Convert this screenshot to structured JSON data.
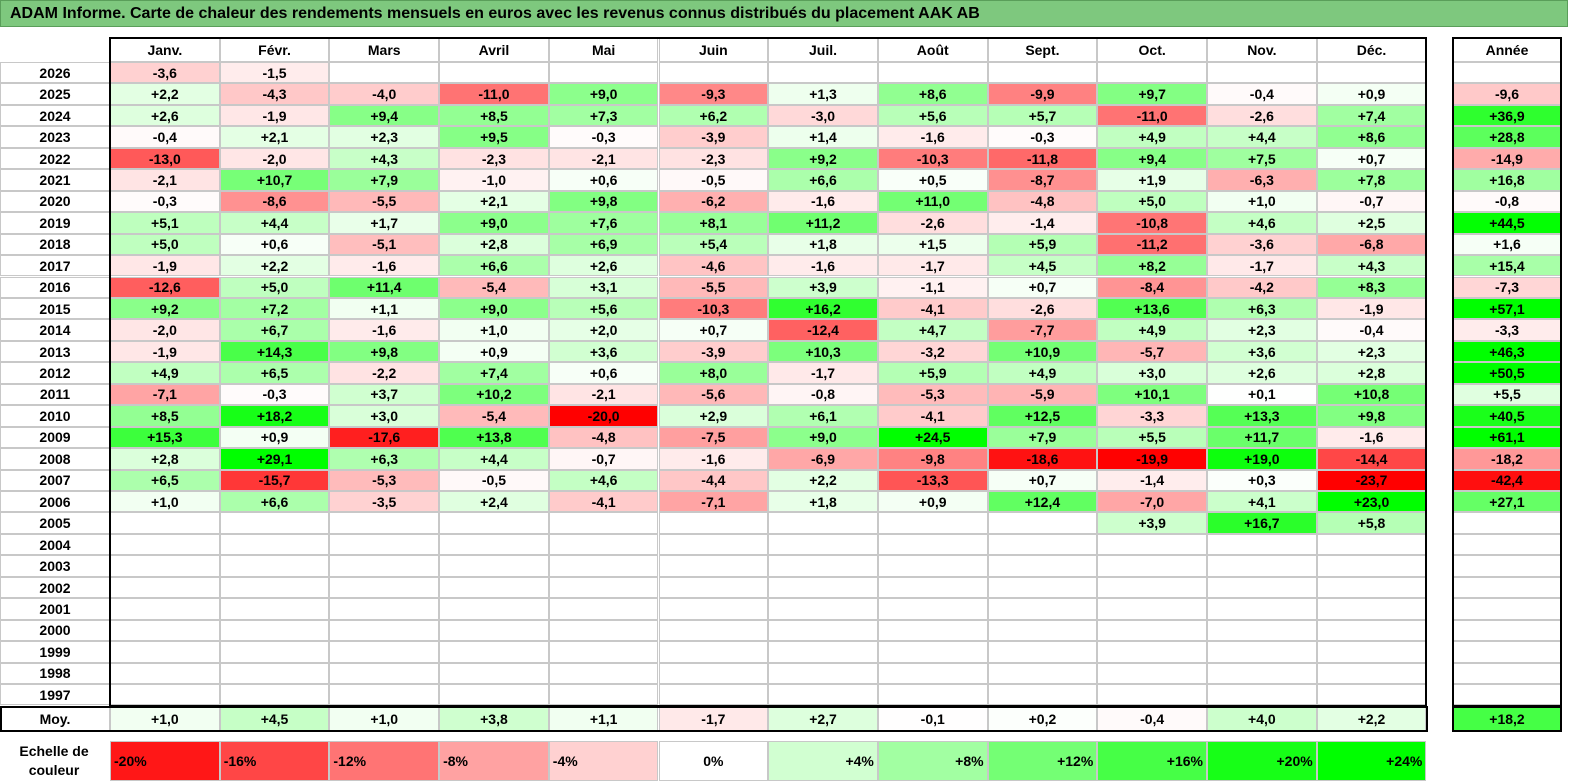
{
  "title": "ADAM Informe. Carte de chaleur des rendements mensuels en euros avec les revenus connus distribués du placement AAK AB",
  "chart_data": {
    "type": "heatmap",
    "months": [
      "Janv.",
      "Févr.",
      "Mars",
      "Avril",
      "Mai",
      "Juin",
      "Juil.",
      "Août",
      "Sept.",
      "Oct.",
      "Nov.",
      "Déc."
    ],
    "year_header": "Année",
    "rows": [
      {
        "year": "2026",
        "values": [
          "-3,6",
          "-1,5",
          "",
          "",
          "",
          "",
          "",
          "",
          "",
          "",
          "",
          ""
        ],
        "annual": ""
      },
      {
        "year": "2025",
        "values": [
          "+2,2",
          "-4,3",
          "-4,0",
          "-11,0",
          "+9,0",
          "-9,3",
          "+1,3",
          "+8,6",
          "-9,9",
          "+9,7",
          "-0,4",
          "+0,9"
        ],
        "annual": "-9,6"
      },
      {
        "year": "2024",
        "values": [
          "+2,6",
          "-1,9",
          "+9,4",
          "+8,5",
          "+7,3",
          "+6,2",
          "-3,0",
          "+5,6",
          "+5,7",
          "-11,0",
          "-2,6",
          "+7,4"
        ],
        "annual": "+36,9"
      },
      {
        "year": "2023",
        "values": [
          "-0,4",
          "+2,1",
          "+2,3",
          "+9,5",
          "-0,3",
          "-3,9",
          "+1,4",
          "-1,6",
          "-0,3",
          "+4,9",
          "+4,4",
          "+8,6"
        ],
        "annual": "+28,8"
      },
      {
        "year": "2022",
        "values": [
          "-13,0",
          "-2,0",
          "+4,3",
          "-2,3",
          "-2,1",
          "-2,3",
          "+9,2",
          "-10,3",
          "-11,8",
          "+9,4",
          "+7,5",
          "+0,7"
        ],
        "annual": "-14,9"
      },
      {
        "year": "2021",
        "values": [
          "-2,1",
          "+10,7",
          "+7,9",
          "-1,0",
          "+0,6",
          "-0,5",
          "+6,6",
          "+0,5",
          "-8,7",
          "+1,9",
          "-6,3",
          "+7,8"
        ],
        "annual": "+16,8"
      },
      {
        "year": "2020",
        "values": [
          "-0,3",
          "-8,6",
          "-5,5",
          "+2,1",
          "+9,8",
          "-6,2",
          "-1,6",
          "+11,0",
          "-4,8",
          "+5,0",
          "+1,0",
          "-0,7"
        ],
        "annual": "-0,8"
      },
      {
        "year": "2019",
        "values": [
          "+5,1",
          "+4,4",
          "+1,7",
          "+9,0",
          "+7,6",
          "+8,1",
          "+11,2",
          "-2,6",
          "-1,4",
          "-10,8",
          "+4,6",
          "+2,5"
        ],
        "annual": "+44,5"
      },
      {
        "year": "2018",
        "values": [
          "+5,0",
          "+0,6",
          "-5,1",
          "+2,8",
          "+6,9",
          "+5,4",
          "+1,8",
          "+1,5",
          "+5,9",
          "-11,2",
          "-3,6",
          "-6,8"
        ],
        "annual": "+1,6"
      },
      {
        "year": "2017",
        "values": [
          "-1,9",
          "+2,2",
          "-1,6",
          "+6,6",
          "+2,6",
          "-4,6",
          "-1,6",
          "-1,7",
          "+4,5",
          "+8,2",
          "-1,7",
          "+4,3"
        ],
        "annual": "+15,4"
      },
      {
        "year": "2016",
        "values": [
          "-12,6",
          "+5,0",
          "+11,4",
          "-5,4",
          "+3,1",
          "-5,5",
          "+3,9",
          "-1,1",
          "+0,7",
          "-8,4",
          "-4,2",
          "+8,3"
        ],
        "annual": "-7,3"
      },
      {
        "year": "2015",
        "values": [
          "+9,2",
          "+7,2",
          "+1,1",
          "+9,0",
          "+5,6",
          "-10,3",
          "+16,2",
          "-4,1",
          "-2,6",
          "+13,6",
          "+6,3",
          "-1,9"
        ],
        "annual": "+57,1"
      },
      {
        "year": "2014",
        "values": [
          "-2,0",
          "+6,7",
          "-1,6",
          "+1,0",
          "+2,0",
          "+0,7",
          "-12,4",
          "+4,7",
          "-7,7",
          "+4,9",
          "+2,3",
          "-0,4"
        ],
        "annual": "-3,3"
      },
      {
        "year": "2013",
        "values": [
          "-1,9",
          "+14,3",
          "+9,8",
          "+0,9",
          "+3,6",
          "-3,9",
          "+10,3",
          "-3,2",
          "+10,9",
          "-5,7",
          "+3,6",
          "+2,3"
        ],
        "annual": "+46,3"
      },
      {
        "year": "2012",
        "values": [
          "+4,9",
          "+6,5",
          "-2,2",
          "+7,4",
          "+0,6",
          "+8,0",
          "-1,7",
          "+5,9",
          "+4,9",
          "+3,0",
          "+2,6",
          "+2,8"
        ],
        "annual": "+50,5"
      },
      {
        "year": "2011",
        "values": [
          "-7,1",
          "-0,3",
          "+3,7",
          "+10,2",
          "-2,1",
          "-5,6",
          "-0,8",
          "-5,3",
          "-5,9",
          "+10,1",
          "+0,1",
          "+10,8"
        ],
        "annual": "+5,5"
      },
      {
        "year": "2010",
        "values": [
          "+8,5",
          "+18,2",
          "+3,0",
          "-5,4",
          "-20,0",
          "+2,9",
          "+6,1",
          "-4,1",
          "+12,5",
          "-3,3",
          "+13,3",
          "+9,8"
        ],
        "annual": "+40,5"
      },
      {
        "year": "2009",
        "values": [
          "+15,3",
          "+0,9",
          "-17,6",
          "+13,8",
          "-4,8",
          "-7,5",
          "+9,0",
          "+24,5",
          "+7,9",
          "+5,5",
          "+11,7",
          "-1,6"
        ],
        "annual": "+61,1"
      },
      {
        "year": "2008",
        "values": [
          "+2,8",
          "+29,1",
          "+6,3",
          "+4,4",
          "-0,7",
          "-1,6",
          "-6,9",
          "-9,8",
          "-18,6",
          "-19,9",
          "+19,0",
          "-14,4"
        ],
        "annual": "-18,2"
      },
      {
        "year": "2007",
        "values": [
          "+6,5",
          "-15,7",
          "-5,3",
          "-0,5",
          "+4,6",
          "-4,4",
          "+2,2",
          "-13,3",
          "+0,7",
          "-1,4",
          "+0,3",
          "-23,7"
        ],
        "annual": "-42,4"
      },
      {
        "year": "2006",
        "values": [
          "+1,0",
          "+6,6",
          "-3,5",
          "+2,4",
          "-4,1",
          "-7,1",
          "+1,8",
          "+0,9",
          "+12,4",
          "-7,0",
          "+4,1",
          "+23,0"
        ],
        "annual": "+27,1"
      },
      {
        "year": "2005",
        "values": [
          "",
          "",
          "",
          "",
          "",
          "",
          "",
          "",
          "",
          "+3,9",
          "+16,7",
          "+5,8"
        ],
        "annual": ""
      },
      {
        "year": "2004",
        "values": [
          "",
          "",
          "",
          "",
          "",
          "",
          "",
          "",
          "",
          "",
          "",
          ""
        ],
        "annual": ""
      },
      {
        "year": "2003",
        "values": [
          "",
          "",
          "",
          "",
          "",
          "",
          "",
          "",
          "",
          "",
          "",
          ""
        ],
        "annual": ""
      },
      {
        "year": "2002",
        "values": [
          "",
          "",
          "",
          "",
          "",
          "",
          "",
          "",
          "",
          "",
          "",
          ""
        ],
        "annual": ""
      },
      {
        "year": "2001",
        "values": [
          "",
          "",
          "",
          "",
          "",
          "",
          "",
          "",
          "",
          "",
          "",
          ""
        ],
        "annual": ""
      },
      {
        "year": "2000",
        "values": [
          "",
          "",
          "",
          "",
          "",
          "",
          "",
          "",
          "",
          "",
          "",
          ""
        ],
        "annual": ""
      },
      {
        "year": "1999",
        "values": [
          "",
          "",
          "",
          "",
          "",
          "",
          "",
          "",
          "",
          "",
          "",
          ""
        ],
        "annual": ""
      },
      {
        "year": "1998",
        "values": [
          "",
          "",
          "",
          "",
          "",
          "",
          "",
          "",
          "",
          "",
          "",
          ""
        ],
        "annual": ""
      },
      {
        "year": "1997",
        "values": [
          "",
          "",
          "",
          "",
          "",
          "",
          "",
          "",
          "",
          "",
          "",
          ""
        ],
        "annual": ""
      }
    ],
    "average": {
      "label": "Moy.",
      "values": [
        "+1,0",
        "+4,5",
        "+1,0",
        "+3,8",
        "+1,1",
        "-1,7",
        "+2,7",
        "-0,1",
        "+0,2",
        "-0,4",
        "+4,0",
        "+2,2"
      ],
      "annual": "+18,2"
    },
    "scale": {
      "label": "Echelle de couleur",
      "steps": [
        "-20%",
        "-16%",
        "-12%",
        "-8%",
        "-4%",
        "0%",
        "+4%",
        "+8%",
        "+12%",
        "+16%",
        "+20%",
        "+24%"
      ]
    },
    "colors": {
      "negative_max": "#ff0000",
      "neutral": "#ffffff",
      "positive_max": "#00ff00",
      "title_bar": "#7ec87e"
    }
  }
}
